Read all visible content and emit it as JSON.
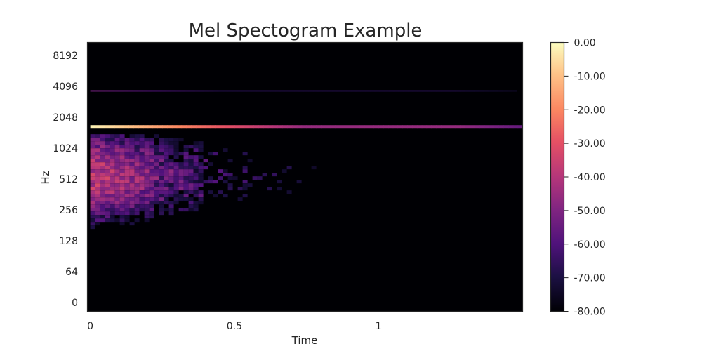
{
  "chart_data": {
    "type": "heatmap",
    "title": "Mel Spectogram Example",
    "xlabel": "Time",
    "ylabel": "Hz",
    "x_ticks": [
      "0",
      "0.5",
      "1"
    ],
    "x_tick_values": [
      0,
      0.5,
      1
    ],
    "xlim": [
      -0.01,
      1.5
    ],
    "y_ticks": [
      "0",
      "64",
      "128",
      "256",
      "512",
      "1024",
      "2048",
      "4096",
      "8192"
    ],
    "colorbar": {
      "ticks": [
        "0.00",
        "-10.00",
        "-20.00",
        "-30.00",
        "-40.00",
        "-50.00",
        "-60.00",
        "-70.00",
        "-80.00"
      ],
      "range_db": [
        -80,
        0
      ],
      "colormap": "magma"
    },
    "background_db": -80,
    "bands": [
      {
        "freq_hz": 1650,
        "start": 0.0,
        "end": 1.5,
        "peak_db": -2,
        "decay_per_s": 20,
        "floor_db": -46,
        "end_db": -56
      },
      {
        "freq_hz": 3700,
        "start": 0.0,
        "end": 1.48,
        "peak_db": -52,
        "decay_per_s": 12,
        "floor_db": -68,
        "end_db": -74
      }
    ],
    "harmonic_region": {
      "freq_hz_low": 180,
      "freq_hz_high": 1400,
      "peak_freq_hz": 560,
      "peak_db": -30,
      "decay_end_time": 0.85
    }
  }
}
